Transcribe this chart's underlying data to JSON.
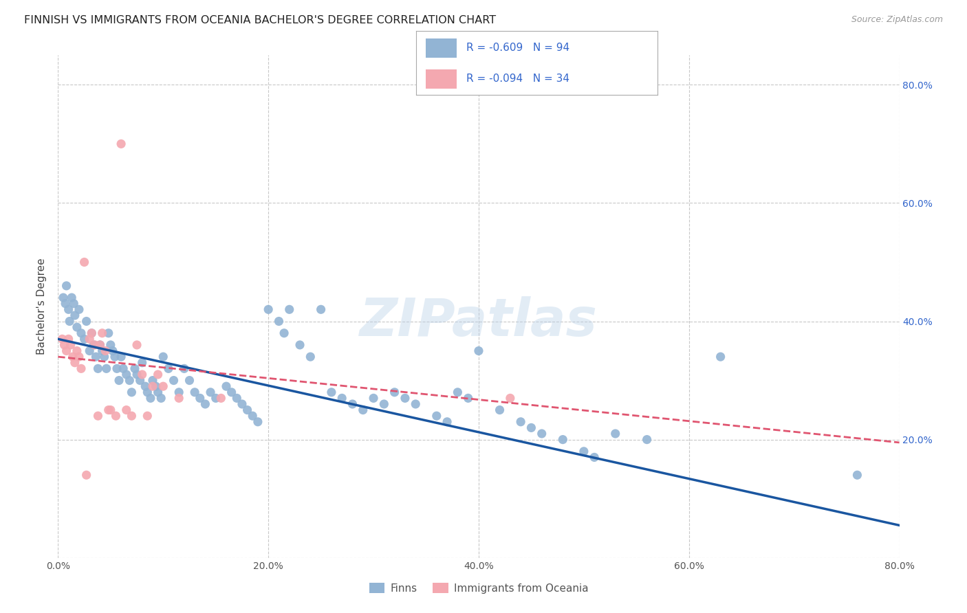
{
  "title": "FINNISH VS IMMIGRANTS FROM OCEANIA BACHELOR'S DEGREE CORRELATION CHART",
  "source": "Source: ZipAtlas.com",
  "ylabel": "Bachelor's Degree",
  "watermark": "ZIPatlas",
  "xlim": [
    0.0,
    0.8
  ],
  "ylim": [
    0.0,
    0.85
  ],
  "xticks": [
    0.0,
    0.2,
    0.4,
    0.6,
    0.8
  ],
  "yticks": [
    0.0,
    0.2,
    0.4,
    0.6,
    0.8
  ],
  "ytick_labels_right": [
    "",
    "20.0%",
    "40.0%",
    "60.0%",
    "80.0%"
  ],
  "xtick_labels": [
    "0.0%",
    "20.0%",
    "40.0%",
    "60.0%",
    "80.0%"
  ],
  "legend_r1": "R = -0.609   N = 94",
  "legend_r2": "R = -0.094   N = 34",
  "blue_color": "#92B4D4",
  "pink_color": "#F4A8B0",
  "line_blue": "#1A56A0",
  "line_pink": "#E05570",
  "text_color": "#3366CC",
  "background": "#FFFFFF",
  "grid_color": "#C8C8C8",
  "legend_label1": "Finns",
  "legend_label2": "Immigrants from Oceania",
  "finns_x": [
    0.005,
    0.007,
    0.008,
    0.01,
    0.011,
    0.013,
    0.015,
    0.016,
    0.018,
    0.02,
    0.022,
    0.025,
    0.027,
    0.03,
    0.032,
    0.034,
    0.036,
    0.038,
    0.04,
    0.042,
    0.044,
    0.046,
    0.048,
    0.05,
    0.052,
    0.054,
    0.056,
    0.058,
    0.06,
    0.062,
    0.065,
    0.068,
    0.07,
    0.073,
    0.075,
    0.078,
    0.08,
    0.083,
    0.085,
    0.088,
    0.09,
    0.093,
    0.095,
    0.098,
    0.1,
    0.105,
    0.11,
    0.115,
    0.12,
    0.125,
    0.13,
    0.135,
    0.14,
    0.145,
    0.15,
    0.16,
    0.165,
    0.17,
    0.175,
    0.18,
    0.185,
    0.19,
    0.2,
    0.21,
    0.215,
    0.22,
    0.23,
    0.24,
    0.25,
    0.26,
    0.27,
    0.28,
    0.29,
    0.3,
    0.31,
    0.32,
    0.33,
    0.34,
    0.36,
    0.37,
    0.38,
    0.39,
    0.4,
    0.42,
    0.44,
    0.45,
    0.46,
    0.48,
    0.5,
    0.51,
    0.53,
    0.56,
    0.63,
    0.76
  ],
  "finns_y": [
    0.44,
    0.43,
    0.46,
    0.42,
    0.4,
    0.44,
    0.43,
    0.41,
    0.39,
    0.42,
    0.38,
    0.37,
    0.4,
    0.35,
    0.38,
    0.36,
    0.34,
    0.32,
    0.36,
    0.35,
    0.34,
    0.32,
    0.38,
    0.36,
    0.35,
    0.34,
    0.32,
    0.3,
    0.34,
    0.32,
    0.31,
    0.3,
    0.28,
    0.32,
    0.31,
    0.3,
    0.33,
    0.29,
    0.28,
    0.27,
    0.3,
    0.29,
    0.28,
    0.27,
    0.34,
    0.32,
    0.3,
    0.28,
    0.32,
    0.3,
    0.28,
    0.27,
    0.26,
    0.28,
    0.27,
    0.29,
    0.28,
    0.27,
    0.26,
    0.25,
    0.24,
    0.23,
    0.42,
    0.4,
    0.38,
    0.42,
    0.36,
    0.34,
    0.42,
    0.28,
    0.27,
    0.26,
    0.25,
    0.27,
    0.26,
    0.28,
    0.27,
    0.26,
    0.24,
    0.23,
    0.28,
    0.27,
    0.35,
    0.25,
    0.23,
    0.22,
    0.21,
    0.2,
    0.18,
    0.17,
    0.21,
    0.2,
    0.34,
    0.14
  ],
  "oceania_x": [
    0.004,
    0.006,
    0.008,
    0.01,
    0.012,
    0.014,
    0.016,
    0.018,
    0.02,
    0.022,
    0.025,
    0.027,
    0.03,
    0.032,
    0.035,
    0.038,
    0.04,
    0.042,
    0.045,
    0.048,
    0.05,
    0.055,
    0.06,
    0.065,
    0.07,
    0.075,
    0.08,
    0.085,
    0.09,
    0.095,
    0.1,
    0.115,
    0.155,
    0.43
  ],
  "oceania_y": [
    0.37,
    0.36,
    0.35,
    0.37,
    0.36,
    0.34,
    0.33,
    0.35,
    0.34,
    0.32,
    0.5,
    0.14,
    0.37,
    0.38,
    0.36,
    0.24,
    0.36,
    0.38,
    0.35,
    0.25,
    0.25,
    0.24,
    0.7,
    0.25,
    0.24,
    0.36,
    0.31,
    0.24,
    0.29,
    0.31,
    0.29,
    0.27,
    0.27,
    0.27
  ],
  "finns_trend_x": [
    0.0,
    0.8
  ],
  "finns_trend_y": [
    0.37,
    0.055
  ],
  "oceania_trend_x": [
    0.0,
    0.8
  ],
  "oceania_trend_y": [
    0.34,
    0.195
  ]
}
